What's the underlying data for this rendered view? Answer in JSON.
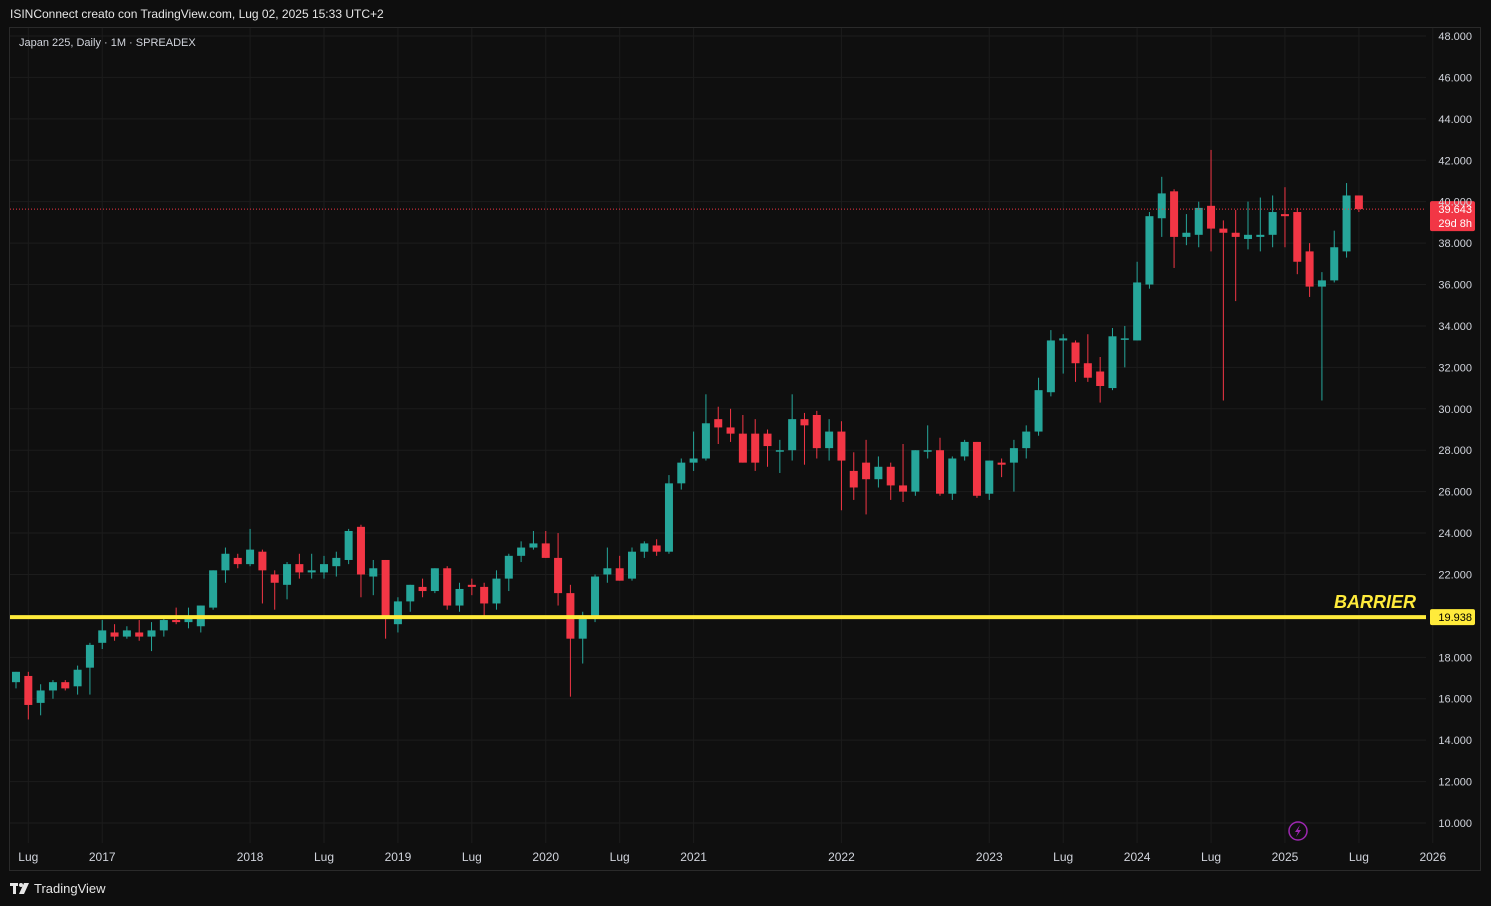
{
  "header": {
    "caption": "ISINConnect creato con TradingView.com, Lug 02, 2025 15:33 UTC+2"
  },
  "chart_data": {
    "type": "candlestick",
    "symbol_label": "Japan 225, Daily · 1M · SPREADEX",
    "y_axis": {
      "range": [
        9000,
        49000
      ],
      "ticks": [
        {
          "value": 48000,
          "label": "48.000"
        },
        {
          "value": 46000,
          "label": "46.000"
        },
        {
          "value": 44000,
          "label": "44.000"
        },
        {
          "value": 42000,
          "label": "42.000"
        },
        {
          "value": 40000,
          "label": "40.000"
        },
        {
          "value": 38000,
          "label": "38.000"
        },
        {
          "value": 36000,
          "label": "36.000"
        },
        {
          "value": 34000,
          "label": "34.000"
        },
        {
          "value": 32000,
          "label": "32.000"
        },
        {
          "value": 30000,
          "label": "30.000"
        },
        {
          "value": 28000,
          "label": "28.000"
        },
        {
          "value": 26000,
          "label": "26.000"
        },
        {
          "value": 24000,
          "label": "24.000"
        },
        {
          "value": 22000,
          "label": "22.000"
        },
        {
          "value": 18000,
          "label": "18.000"
        },
        {
          "value": 16000,
          "label": "16.000"
        },
        {
          "value": 14000,
          "label": "14.000"
        },
        {
          "value": 12000,
          "label": "12.000"
        },
        {
          "value": 10000,
          "label": "10.000"
        }
      ]
    },
    "x_axis": {
      "start_month": "2016-06",
      "end_month": "2026-06",
      "ticks": [
        {
          "month": "2016-07",
          "label": "Lug"
        },
        {
          "month": "2017-01",
          "label": "2017"
        },
        {
          "month": "2018-01",
          "label": "2018"
        },
        {
          "month": "2018-07",
          "label": "Lug"
        },
        {
          "month": "2019-01",
          "label": "2019"
        },
        {
          "month": "2019-07",
          "label": "Lug"
        },
        {
          "month": "2020-01",
          "label": "2020"
        },
        {
          "month": "2020-07",
          "label": "Lug"
        },
        {
          "month": "2021-01",
          "label": "2021"
        },
        {
          "month": "2022-01",
          "label": "2022"
        },
        {
          "month": "2023-01",
          "label": "2023"
        },
        {
          "month": "2023-07",
          "label": "Lug"
        },
        {
          "month": "2024-01",
          "label": "2024"
        },
        {
          "month": "2024-07",
          "label": "Lug"
        },
        {
          "month": "2025-01",
          "label": "2025"
        },
        {
          "month": "2025-07",
          "label": "Lug"
        },
        {
          "month": "2026-01",
          "label": "2026"
        }
      ]
    },
    "candles": [
      {
        "month": "2016-06",
        "o": 16800,
        "h": 17300,
        "l": 16500,
        "c": 17300
      },
      {
        "month": "2016-07",
        "o": 17100,
        "h": 17300,
        "l": 15000,
        "c": 15700
      },
      {
        "month": "2016-08",
        "o": 15800,
        "h": 16700,
        "l": 15200,
        "c": 16400
      },
      {
        "month": "2016-09",
        "o": 16400,
        "h": 16900,
        "l": 16000,
        "c": 16800
      },
      {
        "month": "2016-10",
        "o": 16800,
        "h": 16900,
        "l": 16400,
        "c": 16500
      },
      {
        "month": "2016-11",
        "o": 16600,
        "h": 17600,
        "l": 16200,
        "c": 17400
      },
      {
        "month": "2016-12",
        "o": 17500,
        "h": 18700,
        "l": 16200,
        "c": 18600
      },
      {
        "month": "2017-01",
        "o": 18700,
        "h": 19800,
        "l": 18400,
        "c": 19300
      },
      {
        "month": "2017-02",
        "o": 19200,
        "h": 19600,
        "l": 18800,
        "c": 19000
      },
      {
        "month": "2017-03",
        "o": 19000,
        "h": 19500,
        "l": 18900,
        "c": 19300
      },
      {
        "month": "2017-04",
        "o": 19200,
        "h": 19800,
        "l": 18800,
        "c": 19000
      },
      {
        "month": "2017-05",
        "o": 19000,
        "h": 19700,
        "l": 18300,
        "c": 19300
      },
      {
        "month": "2017-06",
        "o": 19300,
        "h": 20000,
        "l": 19000,
        "c": 19800
      },
      {
        "month": "2017-07",
        "o": 19800,
        "h": 20400,
        "l": 19600,
        "c": 19700
      },
      {
        "month": "2017-08",
        "o": 19700,
        "h": 20400,
        "l": 19400,
        "c": 20000
      },
      {
        "month": "2017-09",
        "o": 19500,
        "h": 20500,
        "l": 19200,
        "c": 20500
      },
      {
        "month": "2017-10",
        "o": 20400,
        "h": 22200,
        "l": 20300,
        "c": 22200
      },
      {
        "month": "2017-11",
        "o": 22200,
        "h": 23300,
        "l": 21600,
        "c": 23000
      },
      {
        "month": "2017-12",
        "o": 22800,
        "h": 23000,
        "l": 22300,
        "c": 22500
      },
      {
        "month": "2018-01",
        "o": 22500,
        "h": 24200,
        "l": 22400,
        "c": 23200
      },
      {
        "month": "2018-02",
        "o": 23100,
        "h": 23200,
        "l": 20600,
        "c": 22200
      },
      {
        "month": "2018-03",
        "o": 22000,
        "h": 22200,
        "l": 20300,
        "c": 21600
      },
      {
        "month": "2018-04",
        "o": 21500,
        "h": 22600,
        "l": 20800,
        "c": 22500
      },
      {
        "month": "2018-05",
        "o": 22500,
        "h": 23000,
        "l": 21800,
        "c": 22100
      },
      {
        "month": "2018-06",
        "o": 22100,
        "h": 23000,
        "l": 21800,
        "c": 22200
      },
      {
        "month": "2018-07",
        "o": 22100,
        "h": 22900,
        "l": 21800,
        "c": 22500
      },
      {
        "month": "2018-08",
        "o": 22400,
        "h": 23100,
        "l": 21900,
        "c": 22800
      },
      {
        "month": "2018-09",
        "o": 22700,
        "h": 24200,
        "l": 22500,
        "c": 24100
      },
      {
        "month": "2018-10",
        "o": 24300,
        "h": 24400,
        "l": 20900,
        "c": 22000
      },
      {
        "month": "2018-11",
        "o": 21900,
        "h": 22700,
        "l": 21000,
        "c": 22300
      },
      {
        "month": "2018-12",
        "o": 22700,
        "h": 22700,
        "l": 18900,
        "c": 20000
      },
      {
        "month": "2019-01",
        "o": 19600,
        "h": 20900,
        "l": 19200,
        "c": 20700
      },
      {
        "month": "2019-02",
        "o": 20700,
        "h": 21500,
        "l": 20200,
        "c": 21500
      },
      {
        "month": "2019-03",
        "o": 21400,
        "h": 21800,
        "l": 20900,
        "c": 21200
      },
      {
        "month": "2019-04",
        "o": 21200,
        "h": 22300,
        "l": 21100,
        "c": 22300
      },
      {
        "month": "2019-05",
        "o": 22300,
        "h": 22400,
        "l": 20300,
        "c": 20500
      },
      {
        "month": "2019-06",
        "o": 20500,
        "h": 21600,
        "l": 20200,
        "c": 21300
      },
      {
        "month": "2019-07",
        "o": 21500,
        "h": 21800,
        "l": 21000,
        "c": 21400
      },
      {
        "month": "2019-08",
        "o": 21400,
        "h": 21600,
        "l": 19900,
        "c": 20600
      },
      {
        "month": "2019-09",
        "o": 20600,
        "h": 22200,
        "l": 20300,
        "c": 21800
      },
      {
        "month": "2019-10",
        "o": 21800,
        "h": 23000,
        "l": 21200,
        "c": 22900
      },
      {
        "month": "2019-11",
        "o": 22900,
        "h": 23600,
        "l": 22600,
        "c": 23300
      },
      {
        "month": "2019-12",
        "o": 23300,
        "h": 24100,
        "l": 23200,
        "c": 23500
      },
      {
        "month": "2020-01",
        "o": 23500,
        "h": 24100,
        "l": 22800,
        "c": 22800
      },
      {
        "month": "2020-02",
        "o": 22800,
        "h": 24000,
        "l": 20500,
        "c": 21100
      },
      {
        "month": "2020-03",
        "o": 21100,
        "h": 21500,
        "l": 16100,
        "c": 18900
      },
      {
        "month": "2020-04",
        "o": 18900,
        "h": 20200,
        "l": 17700,
        "c": 20000
      },
      {
        "month": "2020-05",
        "o": 20000,
        "h": 22000,
        "l": 19700,
        "c": 21900
      },
      {
        "month": "2020-06",
        "o": 22000,
        "h": 23300,
        "l": 21600,
        "c": 22300
      },
      {
        "month": "2020-07",
        "o": 22300,
        "h": 22900,
        "l": 21700,
        "c": 21700
      },
      {
        "month": "2020-08",
        "o": 21800,
        "h": 23300,
        "l": 21700,
        "c": 23100
      },
      {
        "month": "2020-09",
        "o": 23100,
        "h": 23600,
        "l": 22800,
        "c": 23500
      },
      {
        "month": "2020-10",
        "o": 23400,
        "h": 23700,
        "l": 22900,
        "c": 23100
      },
      {
        "month": "2020-11",
        "o": 23100,
        "h": 26800,
        "l": 23000,
        "c": 26400
      },
      {
        "month": "2020-12",
        "o": 26400,
        "h": 27600,
        "l": 26100,
        "c": 27400
      },
      {
        "month": "2021-01",
        "o": 27400,
        "h": 28900,
        "l": 27000,
        "c": 27600
      },
      {
        "month": "2021-02",
        "o": 27600,
        "h": 30700,
        "l": 27500,
        "c": 29300
      },
      {
        "month": "2021-03",
        "o": 29500,
        "h": 30100,
        "l": 28300,
        "c": 29100
      },
      {
        "month": "2021-04",
        "o": 29100,
        "h": 30000,
        "l": 28400,
        "c": 28800
      },
      {
        "month": "2021-05",
        "o": 28800,
        "h": 29700,
        "l": 27400,
        "c": 27400
      },
      {
        "month": "2021-06",
        "o": 28800,
        "h": 29500,
        "l": 27000,
        "c": 27400
      },
      {
        "month": "2021-07",
        "o": 28800,
        "h": 29000,
        "l": 27200,
        "c": 28200
      },
      {
        "month": "2021-08",
        "o": 28000,
        "h": 28500,
        "l": 26900,
        "c": 28000
      },
      {
        "month": "2021-09",
        "o": 28000,
        "h": 30700,
        "l": 27500,
        "c": 29500
      },
      {
        "month": "2021-10",
        "o": 29500,
        "h": 29800,
        "l": 27300,
        "c": 29200
      },
      {
        "month": "2021-11",
        "o": 29700,
        "h": 29900,
        "l": 27600,
        "c": 28100
      },
      {
        "month": "2021-12",
        "o": 28100,
        "h": 29500,
        "l": 27500,
        "c": 28900
      },
      {
        "month": "2022-01",
        "o": 28900,
        "h": 29400,
        "l": 25100,
        "c": 27500
      },
      {
        "month": "2022-02",
        "o": 27000,
        "h": 27900,
        "l": 25600,
        "c": 26200
      },
      {
        "month": "2022-03",
        "o": 27400,
        "h": 28500,
        "l": 24900,
        "c": 26600
      },
      {
        "month": "2022-04",
        "o": 26600,
        "h": 27700,
        "l": 26200,
        "c": 27200
      },
      {
        "month": "2022-05",
        "o": 27200,
        "h": 27400,
        "l": 25600,
        "c": 26300
      },
      {
        "month": "2022-06",
        "o": 26300,
        "h": 28300,
        "l": 25500,
        "c": 26000
      },
      {
        "month": "2022-07",
        "o": 26000,
        "h": 28000,
        "l": 25800,
        "c": 28000
      },
      {
        "month": "2022-08",
        "o": 28000,
        "h": 29200,
        "l": 27600,
        "c": 28000
      },
      {
        "month": "2022-09",
        "o": 28000,
        "h": 28600,
        "l": 25800,
        "c": 25900
      },
      {
        "month": "2022-10",
        "o": 25900,
        "h": 27700,
        "l": 25600,
        "c": 27600
      },
      {
        "month": "2022-11",
        "o": 27700,
        "h": 28500,
        "l": 27500,
        "c": 28400
      },
      {
        "month": "2022-12",
        "o": 28400,
        "h": 28400,
        "l": 25700,
        "c": 25800
      },
      {
        "month": "2023-01",
        "o": 25900,
        "h": 27500,
        "l": 25600,
        "c": 27500
      },
      {
        "month": "2023-02",
        "o": 27400,
        "h": 27600,
        "l": 26700,
        "c": 27300
      },
      {
        "month": "2023-03",
        "o": 27400,
        "h": 28500,
        "l": 26000,
        "c": 28100
      },
      {
        "month": "2023-04",
        "o": 28100,
        "h": 29200,
        "l": 27600,
        "c": 28900
      },
      {
        "month": "2023-05",
        "o": 28900,
        "h": 31500,
        "l": 28700,
        "c": 30900
      },
      {
        "month": "2023-06",
        "o": 30800,
        "h": 33800,
        "l": 30600,
        "c": 33300
      },
      {
        "month": "2023-07",
        "o": 33300,
        "h": 33600,
        "l": 31700,
        "c": 33400
      },
      {
        "month": "2023-08",
        "o": 33200,
        "h": 33300,
        "l": 31300,
        "c": 32200
      },
      {
        "month": "2023-09",
        "o": 32200,
        "h": 33600,
        "l": 31300,
        "c": 31500
      },
      {
        "month": "2023-10",
        "o": 31800,
        "h": 32500,
        "l": 30300,
        "c": 31100
      },
      {
        "month": "2023-11",
        "o": 31000,
        "h": 33900,
        "l": 30900,
        "c": 33500
      },
      {
        "month": "2023-12",
        "o": 33400,
        "h": 34000,
        "l": 32000,
        "c": 33400
      },
      {
        "month": "2024-01",
        "o": 33300,
        "h": 37100,
        "l": 33300,
        "c": 36100
      },
      {
        "month": "2024-02",
        "o": 36000,
        "h": 39500,
        "l": 35800,
        "c": 39300
      },
      {
        "month": "2024-03",
        "o": 39200,
        "h": 41200,
        "l": 38300,
        "c": 40400
      },
      {
        "month": "2024-04",
        "o": 40500,
        "h": 40600,
        "l": 36800,
        "c": 38300
      },
      {
        "month": "2024-05",
        "o": 38300,
        "h": 39400,
        "l": 37900,
        "c": 38500
      },
      {
        "month": "2024-06",
        "o": 38400,
        "h": 40000,
        "l": 37800,
        "c": 39700
      },
      {
        "month": "2024-07",
        "o": 39800,
        "h": 42500,
        "l": 37600,
        "c": 38700
      },
      {
        "month": "2024-08",
        "o": 38700,
        "h": 39100,
        "l": 30400,
        "c": 38500
      },
      {
        "month": "2024-09",
        "o": 38500,
        "h": 39600,
        "l": 35200,
        "c": 38300
      },
      {
        "month": "2024-10",
        "o": 38200,
        "h": 40000,
        "l": 37700,
        "c": 38400
      },
      {
        "month": "2024-11",
        "o": 38300,
        "h": 40200,
        "l": 37600,
        "c": 38400
      },
      {
        "month": "2024-12",
        "o": 38400,
        "h": 40300,
        "l": 37800,
        "c": 39500
      },
      {
        "month": "2025-01",
        "o": 39400,
        "h": 40700,
        "l": 37800,
        "c": 39300
      },
      {
        "month": "2025-02",
        "o": 39500,
        "h": 39700,
        "l": 36500,
        "c": 37100
      },
      {
        "month": "2025-03",
        "o": 37600,
        "h": 38000,
        "l": 35400,
        "c": 35900
      },
      {
        "month": "2025-04",
        "o": 35900,
        "h": 36600,
        "l": 30400,
        "c": 36200
      },
      {
        "month": "2025-05",
        "o": 36200,
        "h": 38600,
        "l": 36100,
        "c": 37800
      },
      {
        "month": "2025-06",
        "o": 37600,
        "h": 40900,
        "l": 37300,
        "c": 40300
      },
      {
        "month": "2025-07",
        "o": 40300,
        "h": 40300,
        "l": 39500,
        "c": 39643
      }
    ],
    "price_line": {
      "value": 39643,
      "label": "39.643",
      "countdown": "29d 8h"
    },
    "barrier": {
      "value": 19938,
      "label": "19.938",
      "text": "BARRIER"
    }
  },
  "colors": {
    "up": "#26a69a",
    "down": "#f23645",
    "barrier": "#ffeb3b",
    "grid": "#1c1c1c",
    "axis_text": "#d1d4dc"
  },
  "footer": {
    "brand": "TradingView"
  }
}
